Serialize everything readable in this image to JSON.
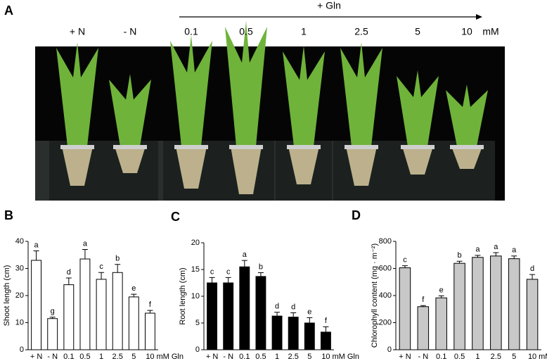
{
  "panel_a": {
    "label": "A",
    "treatment": "+ Gln",
    "labels": [
      "+ N",
      "- N",
      "0.1",
      "0.5",
      "1",
      "2.5",
      "5",
      "10"
    ],
    "unit": "mM"
  },
  "chart_data": [
    {
      "type": "bar",
      "label": "B",
      "y_label": "Shoot length (cm)",
      "categories": [
        "+ N",
        "- N",
        "0.1",
        "0.5",
        "1",
        "2.5",
        "5",
        "10"
      ],
      "x_unit": "mM Gln",
      "series": [
        {
          "color": "#ffffff",
          "values": [
            33,
            11.5,
            24,
            33.5,
            26,
            28.5,
            19.5,
            13.5
          ],
          "errors": [
            3.5,
            0.5,
            2.5,
            3.5,
            2.5,
            3,
            1,
            1
          ],
          "letters": [
            "a",
            "g",
            "d",
            "a",
            "c",
            "b",
            "e",
            "f"
          ]
        }
      ],
      "ylim": [
        0,
        40
      ],
      "yticks": [
        0,
        10,
        20,
        30,
        40
      ]
    },
    {
      "type": "bar",
      "label": "C",
      "y_label": "Root length (cm)",
      "categories": [
        "+ N",
        "- N",
        "0.1",
        "0.5",
        "1",
        "2.5",
        "5",
        "10"
      ],
      "x_unit": "mM Gln",
      "series": [
        {
          "color": "#000000",
          "values": [
            12.5,
            12.5,
            15.5,
            13.7,
            6.3,
            6.1,
            5,
            3.3
          ],
          "errors": [
            1,
            1,
            1.2,
            0.7,
            0.7,
            0.8,
            1,
            1
          ],
          "letters": [
            "c",
            "c",
            "a",
            "b",
            "d",
            "d",
            "e",
            "f"
          ]
        }
      ],
      "ylim": [
        0,
        20
      ],
      "yticks": [
        0,
        5,
        10,
        15,
        20
      ]
    },
    {
      "type": "bar",
      "label": "D",
      "y_label": "Chlorophyll content (mg · m⁻²)",
      "categories": [
        "+ N",
        "- N",
        "0.1",
        "0.5",
        "1",
        "2.5",
        "5",
        "10"
      ],
      "x_unit": "mM Gln",
      "series": [
        {
          "color": "#c8c8c8",
          "values": [
            605,
            318,
            383,
            638,
            682,
            692,
            672,
            520
          ],
          "errors": [
            15,
            8,
            15,
            15,
            15,
            25,
            20,
            35
          ],
          "letters": [
            "c",
            "f",
            "e",
            "b",
            "a",
            "a",
            "a",
            "d"
          ]
        }
      ],
      "ylim": [
        0,
        800
      ],
      "yticks": [
        0,
        200,
        400,
        600,
        800
      ]
    }
  ]
}
